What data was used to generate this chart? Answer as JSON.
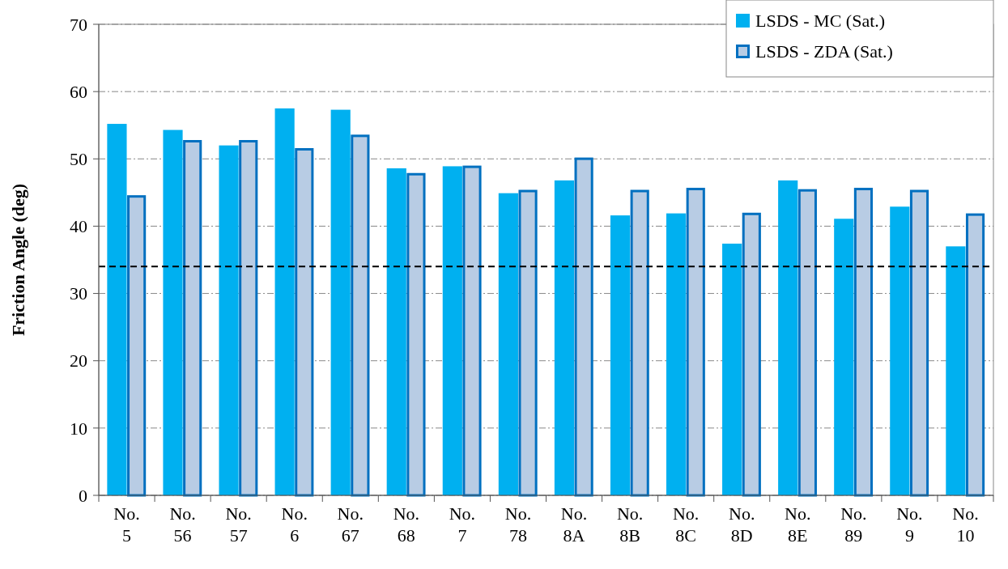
{
  "chart_data": {
    "type": "bar",
    "ylabel": "Friction Angle (deg)",
    "categories": [
      "No. 5",
      "No. 56",
      "No. 57",
      "No. 6",
      "No. 67",
      "No. 68",
      "No. 7",
      "No. 78",
      "No. 8A",
      "No. 8B",
      "No. 8C",
      "No. 8D",
      "No. 8E",
      "No. 89",
      "No. 9",
      "No. 10"
    ],
    "series": [
      {
        "name": "LSDS - MC (Sat.)",
        "color": "#00b0f0",
        "values": [
          55.2,
          54.3,
          52.0,
          57.5,
          57.3,
          48.6,
          48.9,
          44.9,
          46.8,
          41.6,
          41.9,
          37.4,
          46.8,
          41.1,
          42.9,
          37.0
        ]
      },
      {
        "name": "LSDS - ZDA (Sat.)",
        "color": "#b8cce4",
        "values": [
          44.6,
          52.8,
          52.8,
          51.6,
          53.6,
          47.9,
          49.0,
          45.4,
          50.2,
          45.4,
          45.7,
          42.0,
          45.5,
          45.7,
          45.4,
          41.9
        ]
      }
    ],
    "ylim": [
      0,
      70
    ],
    "yticks": [
      0,
      10,
      20,
      30,
      40,
      50,
      60,
      70
    ],
    "grid": "y",
    "legend": "top right",
    "ref_lines": [
      {
        "axis": "y",
        "value": 34,
        "color": "#000000",
        "line_style": "dashed"
      }
    ]
  }
}
